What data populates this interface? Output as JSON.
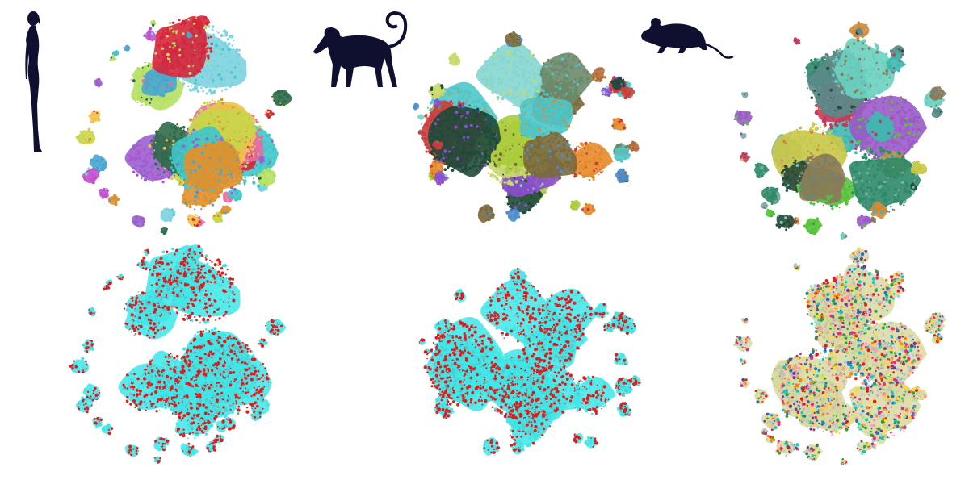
{
  "figure": {
    "rows": [
      "clusters",
      "batch"
    ],
    "columns": [
      {
        "species": "human",
        "icon": "human-silhouette-icon"
      },
      {
        "species": "monkey",
        "icon": "monkey-silhouette-icon"
      },
      {
        "species": "mouse",
        "icon": "mouse-silhouette-icon"
      }
    ],
    "palettes": {
      "human_clusters": [
        "#c8d64a",
        "#3fc7c9",
        "#d6263b",
        "#e2902a",
        "#9b5fd0",
        "#b6e063",
        "#4aa6cf",
        "#c24fce",
        "#2f6b4a",
        "#e86aa5",
        "#7dd3e0",
        "#f0c24b"
      ],
      "monkey_clusters": [
        "#aacc3a",
        "#4fc6c8",
        "#1f4a3a",
        "#7a6a3c",
        "#e6892a",
        "#8c4fcf",
        "#4a90d0",
        "#d03a3a",
        "#86d6d0",
        "#b46a3a",
        "#6b8a6a",
        "#c6d96b"
      ],
      "mouse_clusters": [
        "#55c23a",
        "#3fb8b0",
        "#8a7a5a",
        "#2f8a6a",
        "#c43a5a",
        "#5a8a8a",
        "#7ab0a0",
        "#c8c84a",
        "#2a4a3a",
        "#9a5ac8",
        "#d08a3a",
        "#6ad0c0"
      ],
      "batch_two": [
        "#e31a1c",
        "#3ee6e8"
      ],
      "batch_many": [
        "#e31a1c",
        "#ff7f00",
        "#33a02c",
        "#1f78b4",
        "#6a3d9a",
        "#b2df8a",
        "#fb9a99",
        "#a6cee3",
        "#cab2d6",
        "#ffd92f",
        "#00d0c0",
        "#e7298a"
      ]
    }
  }
}
